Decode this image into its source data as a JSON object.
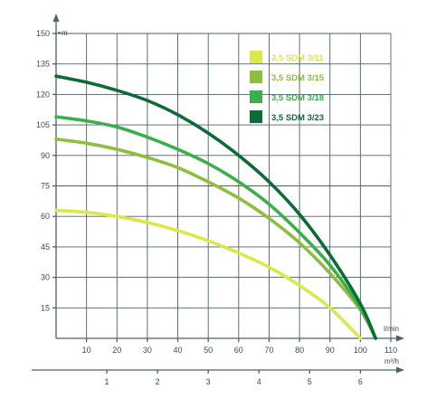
{
  "chart_data": {
    "type": "line",
    "y_axis": {
      "unit": "m",
      "ticks": [
        "15",
        "30",
        "45",
        "60",
        "75",
        "90",
        "105",
        "120",
        "135",
        "150"
      ],
      "range": [
        0,
        150
      ]
    },
    "x_axis": {
      "unit": "l/min",
      "ticks": [
        "10",
        "20",
        "30",
        "40",
        "50",
        "60",
        "70",
        "80",
        "90",
        "100",
        "110"
      ],
      "range": [
        0,
        110
      ]
    },
    "x_axis_secondary": {
      "unit": "m³/h",
      "ticks": [
        "1",
        "2",
        "3",
        "4",
        "5",
        "6"
      ],
      "range": [
        0,
        6.6
      ]
    },
    "grid": true,
    "legend_position": "top-right",
    "series": [
      {
        "name": "3,5 SDM 3/11",
        "color": "#dbe84a",
        "x": [
          0,
          10,
          20,
          30,
          40,
          50,
          60,
          70,
          80,
          90,
          100
        ],
        "y": [
          63,
          62,
          60,
          57,
          53,
          48,
          42,
          35,
          26,
          15,
          0
        ]
      },
      {
        "name": "3,5 SDM 3/15",
        "color": "#8dbe3e",
        "x": [
          0,
          10,
          20,
          30,
          40,
          50,
          60,
          70,
          80,
          90,
          100,
          105
        ],
        "y": [
          98,
          96,
          93,
          89,
          84,
          77,
          69,
          59,
          47,
          32,
          14,
          0
        ]
      },
      {
        "name": "3,5 SDM 3/18",
        "color": "#3cae4e",
        "x": [
          0,
          10,
          20,
          30,
          40,
          50,
          60,
          70,
          80,
          90,
          100,
          105
        ],
        "y": [
          109,
          107,
          104,
          99,
          93,
          86,
          77,
          66,
          52,
          36,
          15,
          0
        ]
      },
      {
        "name": "3,5 SDM 3/23",
        "color": "#0e6a36",
        "x": [
          0,
          10,
          20,
          30,
          40,
          50,
          60,
          70,
          80,
          90,
          100,
          105
        ],
        "y": [
          129,
          126,
          122,
          117,
          110,
          101,
          90,
          77,
          61,
          41,
          17,
          0
        ]
      }
    ]
  }
}
